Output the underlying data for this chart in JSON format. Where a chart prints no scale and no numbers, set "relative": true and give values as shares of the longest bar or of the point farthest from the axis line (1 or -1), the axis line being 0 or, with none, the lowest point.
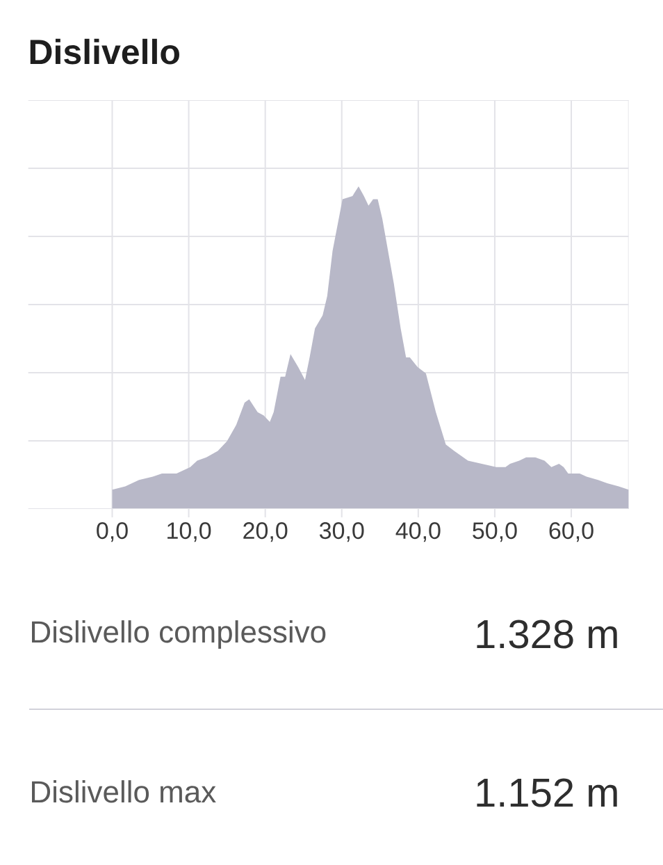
{
  "chart_data": {
    "type": "area",
    "title": "Dislivello",
    "relative": true,
    "color": "#b8b8c8",
    "x": [
      0,
      1.7,
      3.5,
      5.3,
      6.5,
      8.4,
      10.2,
      11.1,
      12.3,
      13.8,
      15.0,
      16.2,
      17.3,
      17.9,
      19.0,
      19.8,
      20.6,
      21.1,
      22.0,
      22.6,
      23.3,
      24.3,
      25.2,
      25.8,
      26.5,
      27.5,
      28.1,
      28.8,
      30.1,
      31.4,
      32.2,
      32.9,
      33.5,
      34.1,
      34.7,
      35.3,
      36.8,
      37.7,
      38.4,
      38.9,
      39.9,
      41.0,
      42.3,
      43.6,
      44.7,
      46.5,
      48.3,
      50.2,
      51.4,
      52.0,
      53.2,
      54.1,
      54.7,
      55.3,
      56.5,
      57.4,
      58.4,
      59.0,
      59.6,
      61.1,
      62.0,
      63.5,
      64.7,
      66.2,
      67.5
    ],
    "values": [
      0.06,
      0.07,
      0.09,
      0.1,
      0.11,
      0.11,
      0.13,
      0.15,
      0.16,
      0.18,
      0.21,
      0.26,
      0.33,
      0.34,
      0.3,
      0.29,
      0.27,
      0.3,
      0.41,
      0.41,
      0.48,
      0.44,
      0.4,
      0.47,
      0.56,
      0.6,
      0.66,
      0.8,
      0.96,
      0.97,
      1.0,
      0.97,
      0.94,
      0.96,
      0.96,
      0.9,
      0.7,
      0.56,
      0.47,
      0.47,
      0.44,
      0.42,
      0.3,
      0.2,
      0.18,
      0.15,
      0.14,
      0.13,
      0.13,
      0.14,
      0.15,
      0.16,
      0.16,
      0.16,
      0.15,
      0.13,
      0.14,
      0.13,
      0.11,
      0.11,
      0.1,
      0.09,
      0.08,
      0.07,
      0.06
    ],
    "xlim": [
      -11,
      67.5
    ],
    "xticks": [
      {
        "value": 0,
        "label": "0,0"
      },
      {
        "value": 10,
        "label": "10,0"
      },
      {
        "value": 20,
        "label": "20,0"
      },
      {
        "value": 30,
        "label": "30,0"
      },
      {
        "value": 40,
        "label": "40,0"
      },
      {
        "value": 50,
        "label": "50,0"
      },
      {
        "value": 60,
        "label": "60,0"
      }
    ],
    "grid": true,
    "annotations": [
      "Dislivello complessivo",
      "1.328 m",
      "Dislivello max",
      "1.152 m"
    ]
  }
}
